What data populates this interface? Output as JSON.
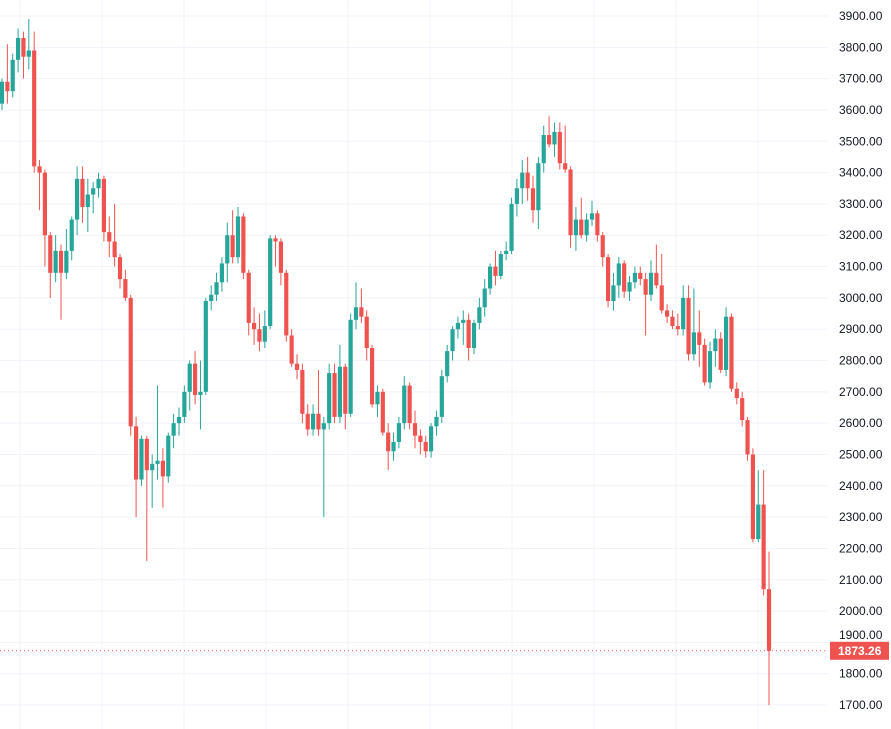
{
  "chart_data": {
    "type": "candlestick",
    "title": "",
    "xlabel": "",
    "ylabel": "",
    "ylim": [
      1650,
      3950
    ],
    "y_ticks": [
      "1700.00",
      "1800.00",
      "1900.00",
      "2000.00",
      "2100.00",
      "2200.00",
      "2300.00",
      "2400.00",
      "2500.00",
      "2600.00",
      "2700.00",
      "2800.00",
      "2900.00",
      "3000.00",
      "3100.00",
      "3200.00",
      "3300.00",
      "3400.00",
      "3500.00",
      "3600.00",
      "3700.00",
      "3800.00",
      "3900.00"
    ],
    "grid": true,
    "y_axis_position": "right",
    "last_price": 1873.26,
    "last_price_label": "1873.26",
    "colors": {
      "up": "#26a69a",
      "down": "#ef5350",
      "grid": "#f0f3fa",
      "last_price": "#ef5350"
    },
    "ohlc_format": [
      "open",
      "high",
      "low",
      "close"
    ],
    "candles": [
      [
        3620,
        3700,
        3600,
        3690
      ],
      [
        3690,
        3810,
        3620,
        3660
      ],
      [
        3660,
        3780,
        3640,
        3760
      ],
      [
        3760,
        3860,
        3720,
        3830
      ],
      [
        3830,
        3850,
        3700,
        3770
      ],
      [
        3770,
        3890,
        3730,
        3790
      ],
      [
        3790,
        3850,
        3400,
        3420
      ],
      [
        3420,
        3440,
        3280,
        3400
      ],
      [
        3400,
        3410,
        3100,
        3200
      ],
      [
        3200,
        3210,
        3000,
        3080
      ],
      [
        3080,
        3200,
        3050,
        3150
      ],
      [
        3150,
        3170,
        2930,
        3080
      ],
      [
        3080,
        3220,
        3060,
        3150
      ],
      [
        3150,
        3260,
        3120,
        3250
      ],
      [
        3250,
        3420,
        3200,
        3380
      ],
      [
        3380,
        3420,
        3240,
        3290
      ],
      [
        3290,
        3380,
        3210,
        3330
      ],
      [
        3330,
        3370,
        3270,
        3350
      ],
      [
        3350,
        3400,
        3320,
        3380
      ],
      [
        3380,
        3390,
        3180,
        3210
      ],
      [
        3210,
        3260,
        3130,
        3180
      ],
      [
        3180,
        3300,
        3100,
        3130
      ],
      [
        3130,
        3140,
        3030,
        3060
      ],
      [
        3060,
        3090,
        2990,
        3000
      ],
      [
        3000,
        3010,
        2560,
        2590
      ],
      [
        2590,
        2620,
        2300,
        2420
      ],
      [
        2420,
        2560,
        2400,
        2550
      ],
      [
        2550,
        2560,
        2160,
        2450
      ],
      [
        2450,
        2500,
        2330,
        2470
      ],
      [
        2470,
        2720,
        2420,
        2480
      ],
      [
        2480,
        2520,
        2330,
        2430
      ],
      [
        2430,
        2570,
        2410,
        2560
      ],
      [
        2560,
        2630,
        2520,
        2600
      ],
      [
        2600,
        2650,
        2560,
        2620
      ],
      [
        2620,
        2720,
        2600,
        2700
      ],
      [
        2700,
        2800,
        2640,
        2790
      ],
      [
        2790,
        2830,
        2660,
        2690
      ],
      [
        2690,
        2800,
        2580,
        2700
      ],
      [
        2700,
        3000,
        2690,
        2990
      ],
      [
        2990,
        3040,
        2960,
        3010
      ],
      [
        3010,
        3080,
        2990,
        3050
      ],
      [
        3050,
        3130,
        3020,
        3110
      ],
      [
        3110,
        3240,
        3050,
        3200
      ],
      [
        3200,
        3280,
        3110,
        3130
      ],
      [
        3130,
        3290,
        3110,
        3260
      ],
      [
        3260,
        3270,
        3060,
        3080
      ],
      [
        3080,
        3090,
        2880,
        2920
      ],
      [
        2920,
        2970,
        2850,
        2900
      ],
      [
        2900,
        2950,
        2830,
        2860
      ],
      [
        2860,
        2960,
        2840,
        2910
      ],
      [
        2910,
        3200,
        2900,
        3190
      ],
      [
        3190,
        3200,
        3100,
        3180
      ],
      [
        3180,
        3190,
        3040,
        3080
      ],
      [
        3080,
        3090,
        2860,
        2880
      ],
      [
        2880,
        2900,
        2780,
        2790
      ],
      [
        2790,
        2820,
        2740,
        2770
      ],
      [
        2770,
        2790,
        2600,
        2630
      ],
      [
        2630,
        2660,
        2560,
        2580
      ],
      [
        2580,
        2660,
        2560,
        2630
      ],
      [
        2630,
        2770,
        2560,
        2580
      ],
      [
        2580,
        2620,
        2300,
        2600
      ],
      [
        2600,
        2790,
        2580,
        2760
      ],
      [
        2760,
        2790,
        2600,
        2620
      ],
      [
        2620,
        2850,
        2600,
        2780
      ],
      [
        2780,
        2790,
        2580,
        2630
      ],
      [
        2630,
        2950,
        2620,
        2930
      ],
      [
        2930,
        3050,
        2900,
        2970
      ],
      [
        2970,
        3030,
        2920,
        2940
      ],
      [
        2940,
        2960,
        2800,
        2840
      ],
      [
        2840,
        2850,
        2650,
        2660
      ],
      [
        2660,
        2720,
        2620,
        2700
      ],
      [
        2700,
        2710,
        2560,
        2570
      ],
      [
        2570,
        2600,
        2450,
        2510
      ],
      [
        2510,
        2570,
        2480,
        2540
      ],
      [
        2540,
        2620,
        2520,
        2600
      ],
      [
        2600,
        2750,
        2580,
        2720
      ],
      [
        2720,
        2730,
        2580,
        2600
      ],
      [
        2600,
        2640,
        2520,
        2560
      ],
      [
        2560,
        2580,
        2500,
        2540
      ],
      [
        2540,
        2560,
        2490,
        2510
      ],
      [
        2510,
        2600,
        2490,
        2590
      ],
      [
        2590,
        2640,
        2560,
        2620
      ],
      [
        2620,
        2770,
        2600,
        2750
      ],
      [
        2750,
        2850,
        2730,
        2830
      ],
      [
        2830,
        2910,
        2800,
        2900
      ],
      [
        2900,
        2940,
        2870,
        2920
      ],
      [
        2920,
        2960,
        2850,
        2930
      ],
      [
        2930,
        2950,
        2800,
        2840
      ],
      [
        2840,
        2930,
        2820,
        2920
      ],
      [
        2920,
        3000,
        2900,
        2970
      ],
      [
        2970,
        3060,
        2940,
        3030
      ],
      [
        3030,
        3110,
        3010,
        3100
      ],
      [
        3100,
        3150,
        3040,
        3070
      ],
      [
        3070,
        3150,
        3060,
        3140
      ],
      [
        3140,
        3180,
        3120,
        3150
      ],
      [
        3150,
        3320,
        3140,
        3300
      ],
      [
        3300,
        3380,
        3260,
        3350
      ],
      [
        3350,
        3440,
        3300,
        3400
      ],
      [
        3400,
        3450,
        3310,
        3350
      ],
      [
        3350,
        3390,
        3240,
        3280
      ],
      [
        3280,
        3450,
        3220,
        3430
      ],
      [
        3430,
        3550,
        3400,
        3520
      ],
      [
        3520,
        3580,
        3480,
        3490
      ],
      [
        3490,
        3560,
        3450,
        3530
      ],
      [
        3530,
        3560,
        3410,
        3430
      ],
      [
        3430,
        3550,
        3400,
        3410
      ],
      [
        3410,
        3420,
        3160,
        3200
      ],
      [
        3200,
        3290,
        3150,
        3250
      ],
      [
        3250,
        3320,
        3190,
        3200
      ],
      [
        3200,
        3270,
        3180,
        3250
      ],
      [
        3250,
        3310,
        3230,
        3270
      ],
      [
        3270,
        3280,
        3180,
        3200
      ],
      [
        3200,
        3210,
        3100,
        3130
      ],
      [
        3130,
        3140,
        2970,
        2990
      ],
      [
        2990,
        3080,
        2960,
        3040
      ],
      [
        3040,
        3130,
        3000,
        3110
      ],
      [
        3110,
        3120,
        3000,
        3020
      ],
      [
        3020,
        3070,
        2990,
        3050
      ],
      [
        3050,
        3100,
        3030,
        3080
      ],
      [
        3080,
        3100,
        3040,
        3060
      ],
      [
        3060,
        3080,
        2880,
        3010
      ],
      [
        3010,
        3120,
        2990,
        3080
      ],
      [
        3080,
        3170,
        3030,
        3040
      ],
      [
        3040,
        3140,
        2950,
        2960
      ],
      [
        2960,
        2980,
        2920,
        2940
      ],
      [
        2940,
        2960,
        2900,
        2910
      ],
      [
        2910,
        2950,
        2880,
        2900
      ],
      [
        2900,
        3040,
        2880,
        3000
      ],
      [
        3000,
        3040,
        2800,
        2820
      ],
      [
        2820,
        3030,
        2800,
        2890
      ],
      [
        2890,
        2960,
        2780,
        2850
      ],
      [
        2850,
        2870,
        2720,
        2730
      ],
      [
        2730,
        2860,
        2710,
        2830
      ],
      [
        2830,
        2900,
        2780,
        2870
      ],
      [
        2870,
        2890,
        2760,
        2770
      ],
      [
        2770,
        2970,
        2750,
        2940
      ],
      [
        2940,
        2950,
        2700,
        2710
      ],
      [
        2710,
        2730,
        2660,
        2680
      ],
      [
        2680,
        2700,
        2590,
        2610
      ],
      [
        2610,
        2620,
        2480,
        2500
      ],
      [
        2500,
        2520,
        2220,
        2230
      ],
      [
        2230,
        2450,
        2220,
        2340
      ],
      [
        2340,
        2450,
        2050,
        2070
      ],
      [
        2070,
        2190,
        1700,
        1873.26
      ]
    ]
  }
}
